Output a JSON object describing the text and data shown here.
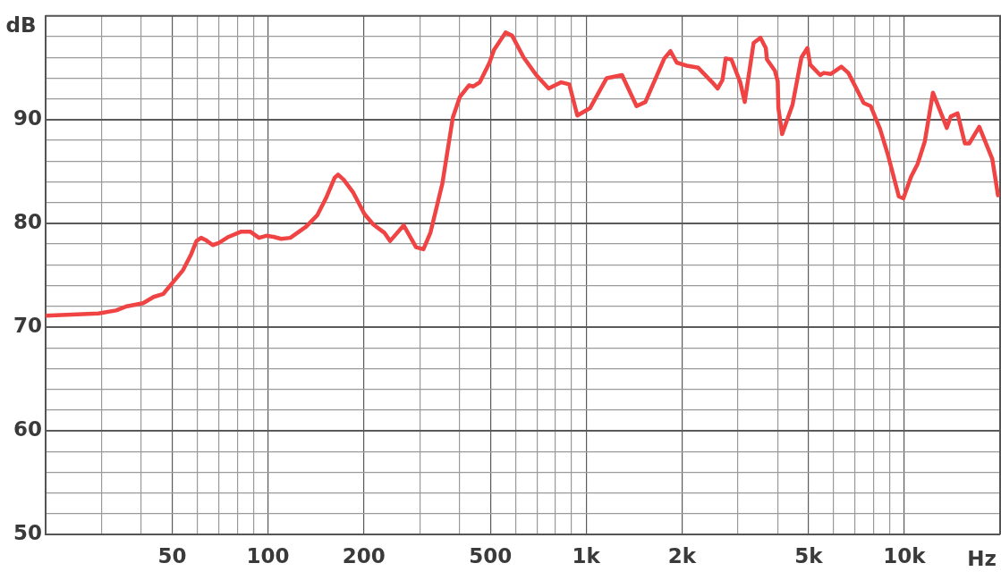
{
  "chart_data": {
    "type": "line",
    "xlabel": "Hz",
    "ylabel": "dB",
    "log": "x",
    "grid": true,
    "marker": "none",
    "line_style": "solid",
    "xlim": [
      20,
      20000
    ],
    "ylim": [
      50,
      100
    ],
    "xticks": [
      {
        "value": 30,
        "label": null
      },
      {
        "value": 40,
        "label": null
      },
      50,
      {
        "value": 60,
        "label": null
      },
      {
        "value": 70,
        "label": null
      },
      {
        "value": 80,
        "label": null
      },
      {
        "value": 90,
        "label": null
      },
      100,
      200,
      {
        "value": 300,
        "label": null
      },
      {
        "value": 400,
        "label": null
      },
      500,
      {
        "value": 600,
        "label": null
      },
      {
        "value": 700,
        "label": null
      },
      {
        "value": 800,
        "label": null
      },
      {
        "value": 900,
        "label": null
      },
      {
        "value": 1000,
        "label": "1k"
      },
      {
        "value": 2000,
        "label": "2k"
      },
      {
        "value": 3000,
        "label": null
      },
      {
        "value": 4000,
        "label": null
      },
      {
        "value": 5000,
        "label": "5k"
      },
      {
        "value": 6000,
        "label": null
      },
      {
        "value": 7000,
        "label": null
      },
      {
        "value": 8000,
        "label": null
      },
      {
        "value": 9000,
        "label": null
      },
      {
        "value": 10000,
        "label": "10k"
      }
    ],
    "yticks": [
      50,
      {
        "value": 52,
        "label": null
      },
      {
        "value": 54,
        "label": null
      },
      {
        "value": 56,
        "label": null
      },
      {
        "value": 58,
        "label": null
      },
      60,
      {
        "value": 62,
        "label": null
      },
      {
        "value": 64,
        "label": null
      },
      {
        "value": 66,
        "label": null
      },
      {
        "value": 68,
        "label": null
      },
      70,
      {
        "value": 72,
        "label": null
      },
      {
        "value": 74,
        "label": null
      },
      {
        "value": 76,
        "label": null
      },
      {
        "value": 78,
        "label": null
      },
      80,
      {
        "value": 82,
        "label": null
      },
      {
        "value": 84,
        "label": null
      },
      {
        "value": 86,
        "label": null
      },
      {
        "value": 88,
        "label": null
      },
      90,
      {
        "value": 92,
        "label": null
      },
      {
        "value": 94,
        "label": null
      },
      {
        "value": 96,
        "label": null
      },
      {
        "value": 98,
        "label": null
      },
      {
        "value": 100,
        "label": null
      }
    ],
    "x": [
      20,
      29.3,
      33.3,
      36,
      40.5,
      43.7,
      46.9,
      54.1,
      57.3,
      59.6,
      61.6,
      63.6,
      67,
      70,
      75.2,
      82.4,
      87.9,
      93.7,
      98.7,
      104,
      110,
      117.5,
      132,
      143,
      152,
      162,
      166,
      173,
      185,
      201,
      214,
      232,
      242,
      267,
      292,
      308,
      324,
      353,
      381,
      401,
      428,
      442,
      463,
      497,
      513,
      558,
      585,
      636,
      697,
      762,
      835,
      885,
      938,
      1028,
      1160,
      1296,
      1440,
      1535,
      1760,
      1841,
      1926,
      2070,
      2250,
      2490,
      2590,
      2680,
      2745,
      2860,
      3050,
      3150,
      3360,
      3530,
      3670,
      3700,
      3920,
      4000,
      4020,
      4130,
      4450,
      4750,
      4960,
      5060,
      5440,
      5580,
      5870,
      6340,
      6670,
      7120,
      7450,
      7840,
      8390,
      8900,
      9610,
      9930,
      10500,
      11000,
      11600,
      12300,
      13600,
      14000,
      14700,
      15500,
      16000,
      17200,
      18900,
      19700
    ],
    "series": [
      {
        "color": "#f04343",
        "values": [
          71.1,
          71.3,
          71.6,
          72.0,
          72.3,
          72.9,
          73.2,
          75.5,
          77.0,
          78.3,
          78.6,
          78.4,
          77.9,
          78.1,
          78.7,
          79.2,
          79.2,
          78.6,
          78.8,
          78.7,
          78.5,
          78.6,
          79.7,
          80.8,
          82.4,
          84.4,
          84.7,
          84.2,
          83.0,
          80.9,
          79.9,
          79.1,
          78.3,
          79.8,
          77.7,
          77.5,
          79.1,
          83.8,
          90.2,
          92.2,
          93.3,
          93.2,
          93.6,
          95.5,
          96.7,
          98.4,
          98.1,
          96.0,
          94.3,
          93.0,
          93.6,
          93.4,
          90.4,
          91.1,
          94.0,
          94.3,
          91.3,
          91.7,
          95.9,
          96.6,
          95.5,
          95.2,
          95.0,
          93.6,
          93.0,
          93.8,
          95.9,
          95.8,
          93.6,
          91.7,
          97.4,
          97.9,
          96.9,
          95.8,
          94.7,
          93.7,
          91.1,
          88.6,
          91.4,
          96.0,
          96.9,
          95.3,
          94.3,
          94.5,
          94.4,
          95.1,
          94.5,
          92.8,
          91.6,
          91.3,
          89.1,
          86.5,
          82.6,
          82.4,
          84.5,
          85.7,
          87.9,
          92.6,
          89.2,
          90.3,
          90.6,
          87.7,
          87.7,
          89.3,
          86.2,
          82.7
        ]
      }
    ]
  }
}
